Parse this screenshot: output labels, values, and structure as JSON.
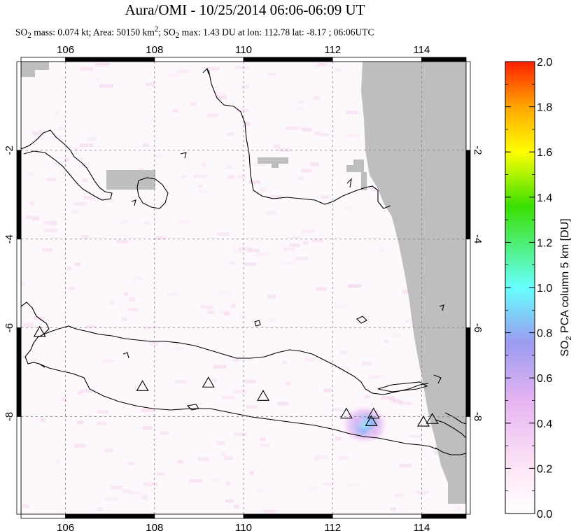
{
  "title": "Aura/OMI - 10/25/2014 06:06-06:09 UT",
  "subtitle": {
    "p1": "SO",
    "s1": "2",
    "p2": " mass: 0.074 kt; Area: 50150 km",
    "s2": "2",
    "p3": "; SO",
    "s3": "2",
    "p4": " max: 1.43 DU at lon: 112.78 lat: -8.17 ; 06:06UTC"
  },
  "chart_data": {
    "type": "heatmap",
    "title": "Aura/OMI - 10/25/2014 06:06-06:09 UT",
    "xlim": [
      105,
      115
    ],
    "ylim": [
      -10.2,
      0
    ],
    "x_ticks": [
      106,
      108,
      110,
      112,
      114
    ],
    "x_tick_labels": [
      "106",
      "108",
      "110",
      "112",
      "114"
    ],
    "y_ticks": [
      -2,
      -4,
      -6,
      -8
    ],
    "y_tick_labels": [
      "-2",
      "-4",
      "-6",
      "-8"
    ],
    "grid": true,
    "colorbar": {
      "label": "SO2 PCA column 5 km [DU]",
      "label_main": "SO",
      "label_sub": "2",
      "label_rest": " PCA column 5 km [DU]",
      "min": 0.0,
      "max": 2.0,
      "ticks": [
        0.0,
        0.2,
        0.4,
        0.6,
        0.8,
        1.0,
        1.2,
        1.4,
        1.6,
        1.8,
        2.0
      ],
      "tick_labels": [
        "0.0",
        "0.2",
        "0.4",
        "0.6",
        "0.8",
        "1.0",
        "1.2",
        "1.4",
        "1.6",
        "1.8",
        "2.0"
      ]
    },
    "max_value": {
      "value": 1.43,
      "lon": 112.78,
      "lat": -8.17
    },
    "volcanoes": [
      {
        "lon": 105.42,
        "lat": -6.1
      },
      {
        "lon": 107.73,
        "lat": -7.32
      },
      {
        "lon": 109.21,
        "lat": -7.24
      },
      {
        "lon": 110.44,
        "lat": -7.54
      },
      {
        "lon": 112.31,
        "lat": -7.94
      },
      {
        "lon": 112.92,
        "lat": -7.94
      },
      {
        "lon": 112.87,
        "lat": -8.11
      },
      {
        "lon": 114.04,
        "lat": -8.12
      },
      {
        "lon": 114.24,
        "lat": -8.06
      }
    ],
    "so2_hotspots": [
      {
        "lon": 112.72,
        "lat": -8.18,
        "value": 1.0
      },
      {
        "lon": 112.55,
        "lat": -8.1,
        "value": 0.45
      },
      {
        "lon": 112.95,
        "lat": -8.35,
        "value": 0.25
      }
    ],
    "colors": {
      "no_data": "#bebebe",
      "coast": "#000000",
      "grid": "#808080"
    }
  }
}
